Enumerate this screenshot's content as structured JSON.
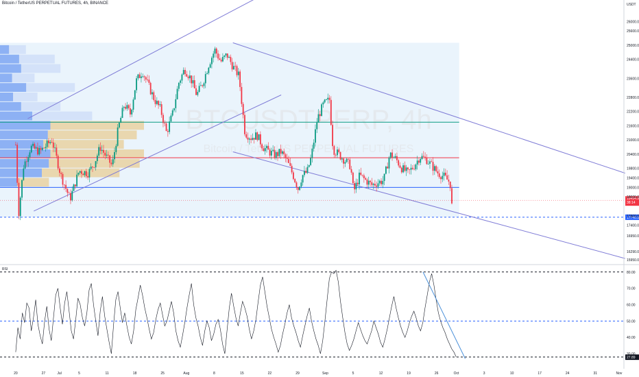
{
  "header": {
    "symbol_line": "Bitcoin / TetherUS PERPETUAL FUTURES, 4h, BINANCE"
  },
  "watermark": {
    "ticker": "BTCUSDTPERP, 4h",
    "name": "Bitcoin / TetherUS PERPETUAL FUTURES"
  },
  "indicator": {
    "label": "RSI"
  },
  "chart_data": [
    {
      "type": "candlestick",
      "title": "Bitcoin / TetherUS PERPETUAL FUTURES, 4h, BINANCE",
      "y_unit_label": "USDT",
      "ylim": [
        15800,
        26500
      ],
      "y_ticks": [
        "26000.0",
        "25600.0",
        "25000.0",
        "24400.0",
        "23600.0",
        "22800.0",
        "22200.0",
        "21600.0",
        "21000.0",
        "20400.0",
        "19800.0",
        "19400.0",
        "19000.0",
        "18600.0",
        "17800.0",
        "17400.0",
        "16950.0",
        "16290.0",
        "15950.0"
      ],
      "x_ticks": [
        "20",
        "27",
        "Jul",
        "5",
        "11",
        "18",
        "25",
        "Aug",
        "8",
        "15",
        "22",
        "29",
        "Sep",
        "5",
        "12",
        "19",
        "26",
        "Oct",
        "3",
        "10",
        "17",
        "24",
        "31",
        "Nov"
      ],
      "current_price": {
        "label": "18454.9",
        "sublabel": "38:14",
        "value": 18454.9
      },
      "marked_level": {
        "label": "17740.5",
        "value": 17740.5
      },
      "horizontal_levels": [
        {
          "value": 21750,
          "color": "#089981"
        },
        {
          "value": 20250,
          "color": "#f23645"
        },
        {
          "value": 19000,
          "color": "#2962ff"
        }
      ],
      "price_path": [
        [
          20.0,
          20800
        ],
        [
          20.5,
          17900
        ],
        [
          21.3,
          19900
        ],
        [
          22.5,
          20700
        ],
        [
          24,
          20500
        ],
        [
          26,
          21000
        ],
        [
          27.5,
          19500
        ],
        [
          29,
          18500
        ],
        [
          30.5,
          19700
        ],
        [
          32,
          19600
        ],
        [
          33,
          20000
        ],
        [
          34,
          20700
        ],
        [
          35,
          20300
        ],
        [
          36,
          19900
        ],
        [
          37,
          21500
        ],
        [
          38,
          22500
        ],
        [
          39,
          22100
        ],
        [
          40,
          23500
        ],
        [
          41,
          23900
        ],
        [
          42,
          23300
        ],
        [
          43,
          22700
        ],
        [
          44,
          22300
        ],
        [
          45,
          21300
        ],
        [
          46,
          22100
        ],
        [
          47,
          23400
        ],
        [
          48,
          24000
        ],
        [
          49,
          23600
        ],
        [
          50,
          22900
        ],
        [
          51,
          23400
        ],
        [
          52,
          24200
        ],
        [
          53,
          24800
        ],
        [
          54,
          24300
        ],
        [
          55,
          24600
        ],
        [
          56,
          24100
        ],
        [
          57,
          23700
        ],
        [
          58,
          21300
        ],
        [
          59,
          21100
        ],
        [
          60,
          21200
        ],
        [
          61,
          20700
        ],
        [
          62,
          20500
        ],
        [
          63,
          20350
        ],
        [
          64,
          20500
        ],
        [
          65,
          20100
        ],
        [
          66,
          19500
        ],
        [
          66.8,
          18950
        ],
        [
          67.5,
          19500
        ],
        [
          68.3,
          19650
        ],
        [
          69,
          20300
        ],
        [
          70,
          21900
        ],
        [
          71,
          22500
        ],
        [
          72,
          22700
        ],
        [
          72.6,
          20600
        ],
        [
          73.5,
          20400
        ],
        [
          74.5,
          20150
        ],
        [
          75.5,
          19900
        ],
        [
          76,
          18800
        ],
        [
          77,
          19500
        ],
        [
          78,
          19300
        ],
        [
          79,
          19100
        ],
        [
          80,
          19200
        ],
        [
          81,
          19300
        ],
        [
          82,
          20400
        ],
        [
          83,
          20200
        ],
        [
          84,
          19800
        ],
        [
          85,
          19600
        ],
        [
          86,
          19900
        ],
        [
          87,
          20300
        ],
        [
          88,
          20200
        ],
        [
          89,
          19900
        ],
        [
          90,
          19600
        ],
        [
          91,
          19450
        ],
        [
          92,
          19200
        ],
        [
          92.4,
          17800
        ]
      ],
      "trend_lines": [
        {
          "name": "ascending-channel-upper",
          "from": [
            22,
            21900
          ],
          "to": [
            66,
            27800
          ]
        },
        {
          "name": "ascending-channel-lower",
          "from": [
            23,
            18000
          ],
          "to": [
            64,
            22900
          ]
        },
        {
          "name": "descending-channel-upper",
          "from": [
            56,
            25100
          ],
          "to": [
            121,
            19600
          ]
        },
        {
          "name": "descending-channel-lower",
          "from": [
            56,
            20500
          ],
          "to": [
            121,
            16000
          ]
        }
      ],
      "volume_profile": {
        "price_bins": [
          24600,
          24200,
          23800,
          23400,
          23000,
          22600,
          22200,
          21800,
          21400,
          21000,
          20600,
          20200,
          19800,
          19400,
          19000
        ],
        "volumes": [
          0.18,
          0.38,
          0.42,
          0.24,
          0.52,
          0.26,
          0.42,
          0.64,
          1.0,
          0.95,
          0.86,
          1.0,
          0.97,
          0.83,
          0.34
        ]
      }
    },
    {
      "type": "line",
      "title": "RSI",
      "ylim": [
        25,
        82
      ],
      "y_ticks": [
        "80.00",
        "70.00",
        "60.00",
        "50.00",
        "40.00",
        "30.00",
        "27.89"
      ],
      "reference_lines": [
        80,
        50,
        28
      ],
      "current_value": 27.89,
      "trend_line": {
        "from": [
          87.5,
          80
        ],
        "to": [
          94.5,
          27
        ]
      },
      "series": [
        {
          "values": [
            31,
            46,
            39,
            55,
            49,
            61,
            58,
            44,
            52,
            63,
            48,
            41,
            36,
            50,
            59,
            45,
            38,
            52,
            66,
            70,
            58,
            48,
            61,
            68,
            56,
            44,
            39,
            51,
            64,
            60,
            52,
            47,
            55,
            69,
            73,
            60,
            50,
            41,
            56,
            65,
            53,
            45,
            37,
            30,
            48,
            63,
            68,
            58,
            49,
            55,
            47,
            40,
            36,
            44,
            57,
            64,
            72,
            66,
            58,
            52,
            45,
            39,
            43,
            51,
            57,
            61,
            54,
            47,
            50,
            56,
            62,
            55,
            44,
            38,
            34,
            41,
            49,
            58,
            66,
            73,
            60,
            52,
            47,
            40,
            35,
            44,
            50,
            46,
            38,
            42,
            48,
            51,
            45,
            36,
            30,
            44,
            58,
            67,
            59,
            52,
            47,
            55,
            62,
            58,
            53,
            45,
            39,
            44,
            51,
            62,
            72,
            77,
            68,
            59,
            52,
            45,
            40,
            36,
            31,
            35,
            42,
            48,
            55,
            60,
            52,
            47,
            43,
            38,
            34,
            41,
            47,
            53,
            58,
            50,
            44,
            39,
            35,
            30,
            38,
            50,
            63,
            76,
            80,
            79,
            81,
            74,
            62,
            52,
            43,
            36,
            32,
            35,
            39,
            44,
            49,
            45,
            41,
            38,
            36,
            40,
            44,
            50,
            46,
            42,
            37,
            34,
            39,
            45,
            52,
            59,
            65,
            58,
            52,
            47,
            43,
            40,
            44,
            49,
            53,
            56,
            52,
            47,
            44,
            49,
            58,
            66,
            74,
            79,
            72,
            63,
            55,
            50,
            46,
            43,
            39,
            36,
            33,
            31,
            28
          ]
        }
      ]
    }
  ],
  "colors": {
    "up": "#089981",
    "down": "#f23645",
    "channel": "#7e7bd6",
    "rsi_line": "#131722",
    "profile_up": "#5b8def",
    "profile_down": "#e8c885",
    "bg_zone": "#eaf4fc"
  }
}
